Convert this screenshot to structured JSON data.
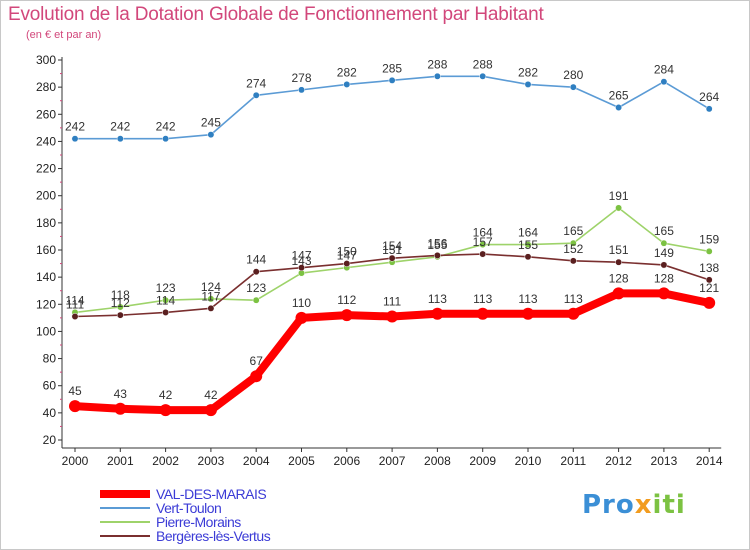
{
  "chart_data": {
    "type": "line",
    "title": "Evolution de la Dotation Globale de Fonctionnement par Habitant",
    "subtitle": "(en € et par an)",
    "xlabel": "",
    "ylabel": "",
    "x": [
      "2000",
      "2001",
      "2002",
      "2003",
      "2004",
      "2005",
      "2006",
      "2007",
      "2008",
      "2009",
      "2010",
      "2011",
      "2012",
      "2013",
      "2014"
    ],
    "ylim": [
      20,
      300
    ],
    "yticks": [
      20,
      40,
      60,
      80,
      100,
      120,
      140,
      160,
      180,
      200,
      220,
      240,
      260,
      280,
      300
    ],
    "grid": false,
    "legend_position": "bottom-left",
    "series": [
      {
        "name": "Vert-Toulon",
        "color": "#5b9bd5",
        "marker": "#2f7fc1",
        "values": [
          242,
          242,
          242,
          245,
          274,
          278,
          282,
          285,
          288,
          288,
          282,
          280,
          265,
          284,
          264
        ]
      },
      {
        "name": "Pierre-Morains",
        "color": "#9ed36a",
        "marker": "#7cc242",
        "values": [
          114,
          118,
          123,
          124,
          123,
          143,
          147,
          151,
          155,
          164,
          164,
          165,
          191,
          165,
          159
        ]
      },
      {
        "name": "Bergères-lès-Vertus",
        "color": "#7a2f2f",
        "marker": "#5a1f1f",
        "values": [
          111,
          112,
          114,
          117,
          144,
          147,
          150,
          154,
          156,
          157,
          155,
          152,
          151,
          149,
          138
        ]
      },
      {
        "name": "VAL-DES-MARAIS",
        "color": "#ff0000",
        "marker": "#ff0000",
        "values": [
          45,
          43,
          42,
          42,
          67,
          110,
          112,
          111,
          113,
          113,
          113,
          113,
          128,
          128,
          121
        ]
      }
    ]
  },
  "legend": {
    "items": [
      "VAL-DES-MARAIS",
      "Vert-Toulon",
      "Pierre-Morains",
      "Bergères-lès-Vertus"
    ]
  },
  "brand": {
    "p1": "Pro",
    "p2": "x",
    "p3": "iti"
  }
}
